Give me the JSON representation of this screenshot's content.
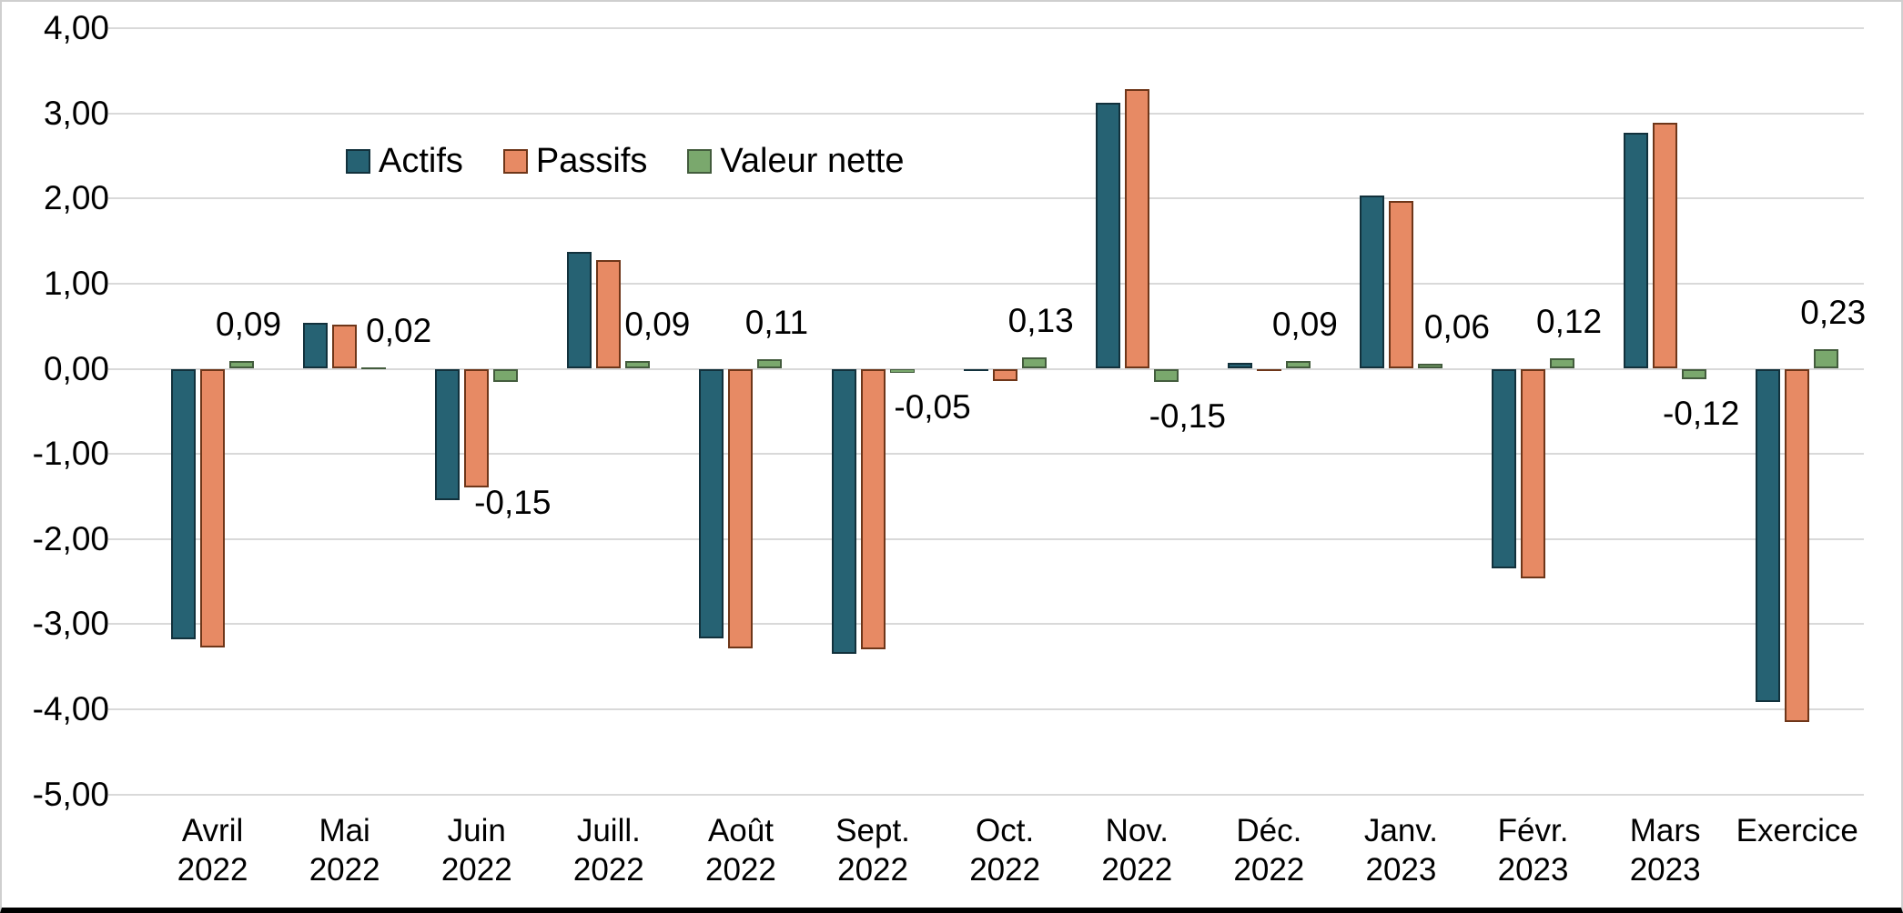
{
  "chart_data": {
    "type": "bar",
    "title": "",
    "categories": [
      {
        "label": "Avril",
        "sub": "2022"
      },
      {
        "label": "Mai",
        "sub": "2022"
      },
      {
        "label": "Juin",
        "sub": "2022"
      },
      {
        "label": "Juill.",
        "sub": "2022"
      },
      {
        "label": "Août",
        "sub": "2022"
      },
      {
        "label": "Sept.",
        "sub": "2022"
      },
      {
        "label": "Oct.",
        "sub": "2022"
      },
      {
        "label": "Nov.",
        "sub": "2022"
      },
      {
        "label": "Déc.",
        "sub": "2022"
      },
      {
        "label": "Janv.",
        "sub": "2023"
      },
      {
        "label": "Févr.",
        "sub": "2023"
      },
      {
        "label": "Mars",
        "sub": "2023"
      },
      {
        "label": "Exercice",
        "sub": ""
      }
    ],
    "series": [
      {
        "name": "Actifs",
        "fill": "#266273",
        "border": "#12313c",
        "values": [
          -3.18,
          0.54,
          -1.54,
          1.37,
          -3.17,
          -3.35,
          -0.01,
          3.13,
          0.07,
          2.03,
          -2.34,
          2.77,
          -3.92
        ]
      },
      {
        "name": "Passifs",
        "fill": "#E78A64",
        "border": "#6E3619",
        "values": [
          -3.27,
          0.52,
          -1.39,
          1.28,
          -3.28,
          -3.3,
          -0.14,
          3.28,
          -0.02,
          1.97,
          -2.46,
          2.89,
          -4.15
        ]
      },
      {
        "name": "Valeur nette",
        "fill": "#7AA86D",
        "border": "#435C3D",
        "values": [
          0.09,
          0.02,
          -0.15,
          0.09,
          0.11,
          -0.05,
          0.13,
          -0.15,
          0.09,
          0.06,
          0.12,
          -0.12,
          0.23
        ],
        "labels": [
          "0,09",
          "0,02",
          "-0,15",
          "0,09",
          "0,11",
          "-0,05",
          "0,13",
          "-0,15",
          "0,09",
          "0,06",
          "0,12",
          "-0,12",
          "0,23"
        ]
      }
    ],
    "y_axis": {
      "min": -5,
      "max": 4,
      "step": 1,
      "tick_labels": [
        "4,00",
        "3,00",
        "2,00",
        "1,00",
        "0,00",
        "-1,00",
        "-2,00",
        "-3,00",
        "-4,00",
        "-5,00"
      ]
    },
    "legend": {
      "position": "inside-top-left"
    },
    "grid": true,
    "labels_note": "Data labels shown for the Valeur nette series only; decimal comma (French) formatting"
  }
}
